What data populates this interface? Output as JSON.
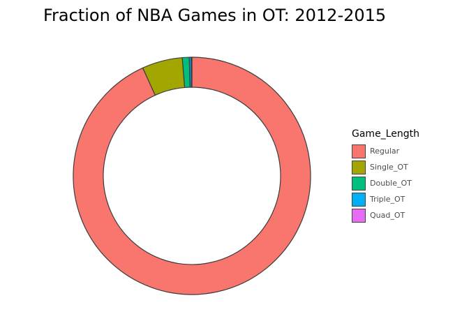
{
  "chart_data": {
    "type": "pie",
    "variant": "donut",
    "title": "Fraction of NBA Games in OT: 2012-2015",
    "legend": {
      "title": "Game_Length",
      "position": "right"
    },
    "slices": [
      {
        "label": "Regular",
        "value": 0.932,
        "color": "#F8766D"
      },
      {
        "label": "Single_OT",
        "value": 0.055,
        "color": "#A3A500"
      },
      {
        "label": "Double_OT",
        "value": 0.0095,
        "color": "#00BF7D"
      },
      {
        "label": "Triple_OT",
        "value": 0.0025,
        "color": "#00B0F6"
      },
      {
        "label": "Quad_OT",
        "value": 0.001,
        "color": "#E76BF3"
      }
    ]
  }
}
